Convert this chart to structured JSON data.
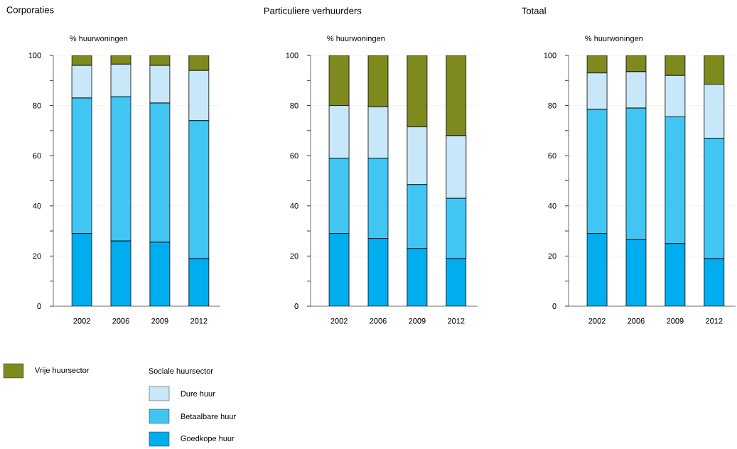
{
  "chart_data": [
    {
      "type": "bar",
      "title": "Corporaties",
      "ylabel": "% huurwoningen",
      "categories": [
        "2002",
        "2006",
        "2009",
        "2012"
      ],
      "stacked": true,
      "grid": "y",
      "legend": "bottom",
      "legend_title": "Sociale huursector",
      "ylim": [
        0,
        100
      ],
      "yticks": [
        0,
        {
          "value": 10,
          "label": null
        },
        20,
        {
          "value": 30,
          "label": null
        },
        40,
        {
          "value": 50,
          "label": null
        },
        60,
        {
          "value": 70,
          "label": null
        },
        80,
        {
          "value": 90,
          "label": null
        },
        100
      ],
      "series": [
        {
          "name": "Goedkope huur",
          "color": "#00aeef",
          "values": [
            29,
            26,
            25.5,
            19
          ]
        },
        {
          "name": "Betaalbare huur",
          "color": "#41c6f4",
          "values": [
            54,
            57.5,
            55.5,
            55
          ]
        },
        {
          "name": "Dure huur",
          "color": "#c8e8fa",
          "values": [
            13,
            13,
            15,
            20
          ]
        },
        {
          "name": "Vrije huursector",
          "color": "#7f8a1e",
          "values": [
            4,
            3.5,
            4,
            6
          ]
        }
      ]
    },
    {
      "type": "bar",
      "title": "Particuliere verhuurders",
      "ylabel": "% huurwoningen",
      "categories": [
        "2002",
        "2006",
        "2009",
        "2012"
      ],
      "stacked": true,
      "grid": "y",
      "ylim": [
        0,
        100
      ],
      "yticks": [
        0,
        {
          "value": 10,
          "label": null
        },
        20,
        {
          "value": 30,
          "label": null
        },
        40,
        {
          "value": 50,
          "label": null
        },
        60,
        {
          "value": 70,
          "label": null
        },
        80,
        {
          "value": 90,
          "label": null
        },
        100
      ],
      "series": [
        {
          "color": "#00aeef",
          "values": [
            29,
            27,
            23,
            19
          ]
        },
        {
          "color": "#41c6f4",
          "values": [
            30,
            32,
            25.5,
            24
          ]
        },
        {
          "color": "#c8e8fa",
          "values": [
            21,
            20.5,
            23,
            25
          ]
        },
        {
          "color": "#7f8a1e",
          "values": [
            20,
            20.5,
            28.5,
            32
          ]
        }
      ]
    },
    {
      "type": "bar",
      "title": "Totaal",
      "ylabel": "% huurwoningen",
      "categories": [
        "2002",
        "2006",
        "2009",
        "2012"
      ],
      "stacked": true,
      "grid": "y",
      "ylim": [
        0,
        100
      ],
      "yticks": [
        0,
        {
          "value": 10,
          "label": null
        },
        20,
        {
          "value": 30,
          "label": null
        },
        40,
        {
          "value": 50,
          "label": null
        },
        60,
        {
          "value": 70,
          "label": null
        },
        80,
        {
          "value": 90,
          "label": null
        },
        100
      ],
      "series": [
        {
          "color": "#00aeef",
          "values": [
            29,
            26.5,
            25,
            19
          ]
        },
        {
          "color": "#41c6f4",
          "values": [
            49.5,
            52.5,
            50.5,
            48
          ]
        },
        {
          "color": "#c8e8fa",
          "values": [
            14.5,
            14.5,
            16.5,
            21.5
          ]
        },
        {
          "color": "#7f8a1e",
          "values": [
            7,
            6.5,
            8,
            11.5
          ]
        }
      ]
    }
  ]
}
